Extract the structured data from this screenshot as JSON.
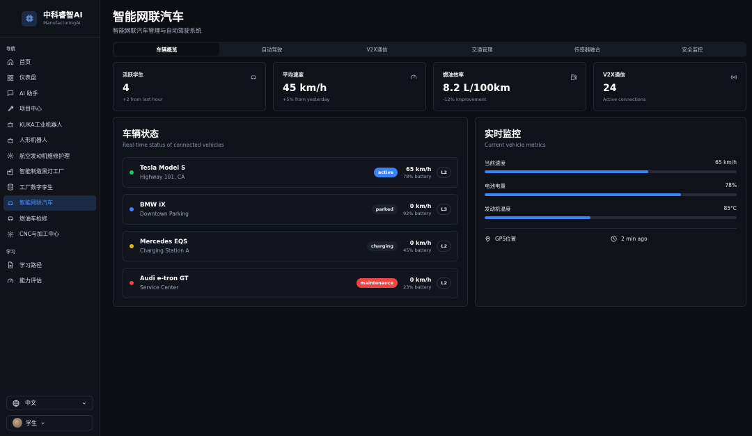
{
  "brand": {
    "name": "中科睿智AI",
    "tagline": "ManufacturingAI"
  },
  "sidebar": {
    "section_nav": "导航",
    "nav_items": [
      {
        "label": "首页",
        "icon": "home-icon"
      },
      {
        "label": "仪表盘",
        "icon": "dashboard-icon"
      },
      {
        "label": "AI 助手",
        "icon": "chat-icon"
      },
      {
        "label": "项目中心",
        "icon": "wrench-icon"
      },
      {
        "label": "KUKA工业机器人",
        "icon": "robot-icon"
      },
      {
        "label": "人形机器人",
        "icon": "robot-icon"
      },
      {
        "label": "航空发动机维修护理",
        "icon": "gear-icon"
      },
      {
        "label": "智能制造黑灯工厂",
        "icon": "factory-icon"
      },
      {
        "label": "工厂数字孪生",
        "icon": "database-icon"
      },
      {
        "label": "智能网联汽车",
        "icon": "car-icon",
        "active": true
      },
      {
        "label": "燃油车检修",
        "icon": "car-icon"
      },
      {
        "label": "CNC与加工中心",
        "icon": "gear-icon"
      }
    ],
    "section_learn": "学习",
    "learn_items": [
      {
        "label": "学习路径",
        "icon": "document-icon"
      },
      {
        "label": "能力评估",
        "icon": "gauge-icon"
      }
    ],
    "language": "中文",
    "user": "学生"
  },
  "header": {
    "title": "智能网联汽车",
    "subtitle": "智能网联汽车管理与自动驾驶系统"
  },
  "tabs": [
    "车辆概览",
    "自动驾驶",
    "V2X通信",
    "交通管理",
    "传感器融合",
    "安全监控"
  ],
  "stats": [
    {
      "label": "活跃学生",
      "value": "4",
      "note": "+2 from last hour",
      "icon": "car-icon"
    },
    {
      "label": "平均速度",
      "value": "45 km/h",
      "note": "+5% from yesterday",
      "icon": "gauge-icon"
    },
    {
      "label": "燃油效率",
      "value": "8.2 L/100km",
      "note": "-12% improvement",
      "icon": "fuel-icon"
    },
    {
      "label": "V2X通信",
      "value": "24",
      "note": "Active connections",
      "icon": "signal-icon"
    }
  ],
  "vehicles_panel": {
    "title": "车辆状态",
    "subtitle": "Real-time status of connected vehicles",
    "vehicles": [
      {
        "name": "Tesla Model S",
        "location": "Highway 101, CA",
        "status": "active",
        "speed": "65 km/h",
        "battery": "78% battery",
        "level": "L2",
        "dot_color": "#22c55e"
      },
      {
        "name": "BMW iX",
        "location": "Downtown Parking",
        "status": "parked",
        "speed": "0 km/h",
        "battery": "92% battery",
        "level": "L3",
        "dot_color": "#3b82f6"
      },
      {
        "name": "Mercedes EQS",
        "location": "Charging Station A",
        "status": "charging",
        "speed": "0 km/h",
        "battery": "45% battery",
        "level": "L2",
        "dot_color": "#eab308"
      },
      {
        "name": "Audi e-tron GT",
        "location": "Service Center",
        "status": "maintenance",
        "speed": "0 km/h",
        "battery": "23% battery",
        "level": "L2",
        "dot_color": "#ef4444"
      }
    ]
  },
  "monitor_panel": {
    "title": "实时监控",
    "subtitle": "Current vehicle metrics",
    "metrics": [
      {
        "label": "当前速度",
        "value": "65 km/h",
        "fill": 0.65
      },
      {
        "label": "电池电量",
        "value": "78%",
        "fill": 0.78
      },
      {
        "label": "发动机温度",
        "value": "85°C",
        "fill": 0.42
      }
    ],
    "gps_label": "GPS位置",
    "time_label": "2 min ago"
  },
  "colors": {
    "accent": "#3b82f6",
    "active_nav": "#4d8dff",
    "maintenance": "#ef4444"
  }
}
